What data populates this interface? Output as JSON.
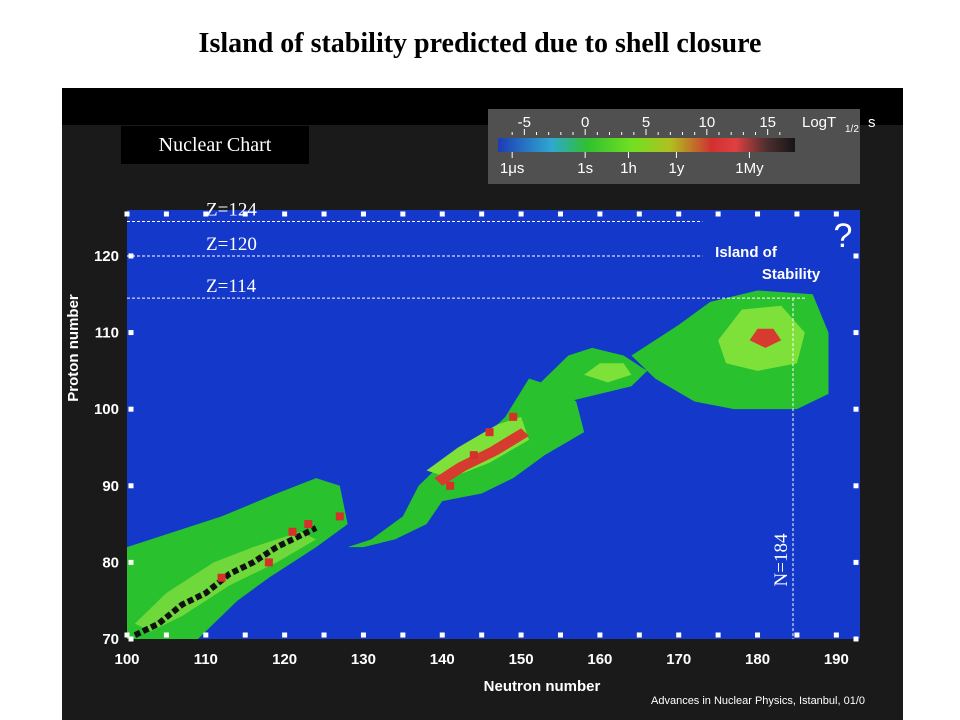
{
  "slide": {
    "title": "Island of stability predicted due to shell closure",
    "chart_label": "Nuclear Chart",
    "footer": "Advances in Nuclear Physics, Istanbul, 01/0"
  },
  "colorbar": {
    "unit_label": "LogT",
    "unit_subscript": "1/2",
    "unit_suffix": "s",
    "top_ticks": [
      "-5",
      "0",
      "5",
      "10",
      "15"
    ],
    "top_tick_values": [
      -5,
      0,
      5,
      10,
      15
    ],
    "bottom_ticks": [
      "1μs",
      "1s",
      "1h",
      "1y",
      "1My"
    ],
    "bottom_tick_values": [
      -6,
      0,
      3.56,
      7.5,
      13.5
    ],
    "range": [
      -7,
      17
    ],
    "colors": [
      "#1e3cb4",
      "#2ea8d0",
      "#30c030",
      "#70e020",
      "#b0c020",
      "#d03030",
      "#e04040",
      "#503030",
      "#151515"
    ]
  },
  "chart_data": {
    "type": "heatmap",
    "xlabel": "Neutron  number",
    "ylabel": "Proton  number",
    "xlim": [
      100,
      193
    ],
    "ylim": [
      70,
      126
    ],
    "x_ticks": [
      100,
      110,
      120,
      130,
      140,
      150,
      160,
      170,
      180,
      190
    ],
    "y_ticks": [
      70,
      80,
      90,
      100,
      110,
      120
    ],
    "z_lines": [
      {
        "label": "Z=124",
        "value": 124.5,
        "x_end": 173
      },
      {
        "label": "Z=120",
        "value": 120,
        "x_end": 173
      },
      {
        "label": "Z=114",
        "value": 114.5,
        "x_end": 186
      }
    ],
    "n_line": {
      "label": "N=184",
      "value": 184.5
    },
    "annotation": {
      "line1": "Island of",
      "line2": "Stability",
      "question": "?"
    },
    "regions": [
      {
        "kind": "band",
        "color": "#29c22e",
        "points": [
          [
            100,
            70
          ],
          [
            100,
            82
          ],
          [
            106,
            84
          ],
          [
            112,
            86
          ],
          [
            119,
            89
          ],
          [
            124,
            91
          ],
          [
            127,
            90
          ],
          [
            128,
            85
          ],
          [
            124,
            82
          ],
          [
            118,
            78
          ],
          [
            114,
            75
          ],
          [
            111,
            72
          ],
          [
            109,
            70
          ]
        ]
      },
      {
        "kind": "band",
        "color": "#29c22e",
        "points": [
          [
            128,
            82
          ],
          [
            131,
            83
          ],
          [
            135,
            86
          ],
          [
            137,
            90
          ],
          [
            139,
            92
          ],
          [
            144,
            95
          ],
          [
            148,
            99
          ],
          [
            151,
            104
          ],
          [
            154,
            103
          ],
          [
            157,
            101
          ],
          [
            158,
            97
          ],
          [
            153,
            94
          ],
          [
            149,
            91
          ],
          [
            145,
            89
          ],
          [
            140,
            88
          ],
          [
            138,
            85
          ],
          [
            134,
            83
          ],
          [
            130,
            82
          ]
        ]
      },
      {
        "kind": "band",
        "color": "#29c22e",
        "points": [
          [
            152,
            103
          ],
          [
            156,
            107
          ],
          [
            159,
            108
          ],
          [
            163,
            107
          ],
          [
            166,
            105
          ],
          [
            164,
            103
          ],
          [
            160,
            102
          ],
          [
            156,
            101
          ]
        ]
      },
      {
        "kind": "band",
        "color": "#29c22e",
        "points": [
          [
            164,
            107
          ],
          [
            170,
            111
          ],
          [
            174,
            114
          ],
          [
            180,
            115.5
          ],
          [
            187,
            115
          ],
          [
            189,
            110
          ],
          [
            189,
            102
          ],
          [
            185,
            100
          ],
          [
            177,
            100
          ],
          [
            172,
            101
          ],
          [
            167,
            104
          ]
        ]
      },
      {
        "kind": "blob",
        "color": "#7ee13a",
        "points": [
          [
            175,
            109
          ],
          [
            178,
            113
          ],
          [
            183,
            113.5
          ],
          [
            186,
            110
          ],
          [
            185,
            106
          ],
          [
            180,
            105
          ],
          [
            176,
            106
          ]
        ]
      },
      {
        "kind": "blob",
        "color": "#d73a2e",
        "points": [
          [
            179,
            109
          ],
          [
            180,
            110.5
          ],
          [
            182,
            110.5
          ],
          [
            183,
            109
          ],
          [
            181,
            108
          ]
        ]
      },
      {
        "kind": "blob",
        "color": "#7ee13a",
        "points": [
          [
            158,
            104.5
          ],
          [
            160,
            106
          ],
          [
            163,
            106
          ],
          [
            164,
            104.5
          ],
          [
            161,
            103.5
          ]
        ]
      },
      {
        "kind": "blob",
        "color": "#7ee13a",
        "points": [
          [
            138,
            92
          ],
          [
            142,
            95
          ],
          [
            147,
            98
          ],
          [
            150,
            99
          ],
          [
            151,
            96
          ],
          [
            146,
            93
          ],
          [
            141,
            91
          ]
        ]
      },
      {
        "kind": "blob",
        "color": "#d73a2e",
        "points": [
          [
            139,
            91
          ],
          [
            142,
            93
          ],
          [
            146,
            95
          ],
          [
            150,
            97.5
          ],
          [
            151,
            96.5
          ],
          [
            147,
            94
          ],
          [
            143,
            92
          ],
          [
            140,
            90
          ]
        ]
      },
      {
        "kind": "blob",
        "color": "#6fd83a",
        "points": [
          [
            101,
            72
          ],
          [
            105,
            76
          ],
          [
            111,
            80
          ],
          [
            116,
            82
          ],
          [
            122,
            84
          ],
          [
            124,
            83
          ],
          [
            119,
            80
          ],
          [
            113,
            77
          ],
          [
            107,
            73
          ],
          [
            103,
            71
          ]
        ]
      }
    ],
    "stable_path": [
      [
        101,
        70.5
      ],
      [
        104,
        72
      ],
      [
        107,
        74.5
      ],
      [
        110,
        76
      ],
      [
        113,
        78.5
      ],
      [
        116,
        80
      ],
      [
        119,
        82
      ],
      [
        122,
        83.5
      ],
      [
        124,
        84.5
      ]
    ],
    "red_points": [
      [
        112,
        78
      ],
      [
        118,
        80
      ],
      [
        123,
        85
      ],
      [
        121,
        84
      ],
      [
        127,
        86
      ],
      [
        144,
        94
      ],
      [
        146,
        97
      ],
      [
        149,
        99
      ],
      [
        141,
        90
      ]
    ]
  }
}
